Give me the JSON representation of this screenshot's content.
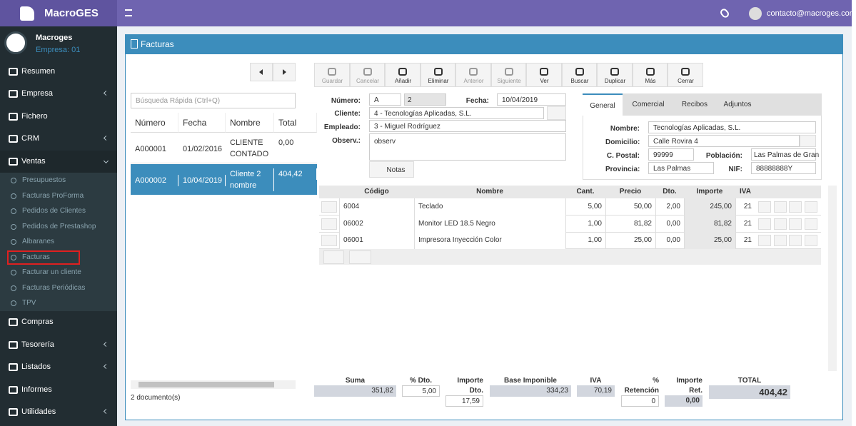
{
  "header": {
    "brand": "MacroGES",
    "user": "contacto@macroges.com"
  },
  "sidebar": {
    "company": "Macroges",
    "company_code": "Empresa: 01",
    "menu_top": [
      "Resumen",
      "Empresa",
      "Fichero",
      "CRM",
      "Ventas"
    ],
    "submenu": [
      "Presupuestos",
      "Facturas ProForma",
      "Pedidos de Clientes",
      "Pedidos de Prestashop",
      "Albaranes",
      "Facturas",
      "Facturar un cliente",
      "Facturas Periódicas",
      "TPV"
    ],
    "menu_bottom": [
      "Compras",
      "Tesorería",
      "Listados",
      "Informes",
      "Utilidades"
    ]
  },
  "panel": {
    "title": "Facturas"
  },
  "list": {
    "search_placeholder": "Búsqueda Rápida (Ctrl+Q)",
    "columns": [
      "Número",
      "Fecha",
      "Nombre",
      "Total"
    ],
    "rows": [
      [
        "A000001",
        "01/02/2016",
        "CLIENTE CONTADO",
        "0,00"
      ],
      [
        "A000002",
        "10/04/2019",
        "Cliente 2 nombre",
        "404,42"
      ]
    ],
    "count": "2 documento(s)"
  },
  "toolbar": [
    "Guardar",
    "Cancelar",
    "Añadir",
    "Eliminar",
    "Anterior",
    "Siguiente",
    "Ver",
    "Buscar",
    "Duplicar",
    "Más",
    "Cerrar"
  ],
  "form": {
    "labels": {
      "numero": "Número:",
      "fecha": "Fecha:",
      "cliente": "Cliente:",
      "empleado": "Empleado:",
      "observ": "Observ.:"
    },
    "serie": "A",
    "numero": "2",
    "fecha": "10/04/2019",
    "cliente": "4 - Tecnologías Aplicadas, S.L.",
    "empleado": "3 - Miguel Rodríguez",
    "observ": "observ",
    "notas": "Notas"
  },
  "tabs": [
    "General",
    "Comercial",
    "Recibos",
    "Adjuntos"
  ],
  "general": {
    "labels": {
      "nombre": "Nombre:",
      "domicilio": "Domicilio:",
      "cpostal": "C. Postal:",
      "poblacion": "Población:",
      "provincia": "Provincia:",
      "nif": "NIF:"
    },
    "nombre": "Tecnologías Aplicadas, S.L.",
    "domicilio": "Calle Rovira 4",
    "cpostal": "99999",
    "poblacion": "Las Palmas de Gran",
    "provincia": "Las Palmas",
    "nif": "88888888Y"
  },
  "lines": {
    "columns": [
      "Código",
      "Nombre",
      "Cant.",
      "Precio",
      "Dto.",
      "Importe",
      "IVA"
    ],
    "rows": [
      [
        "6004",
        "Teclado",
        "5,00",
        "50,00",
        "2,00",
        "245,00",
        "21"
      ],
      [
        "06002",
        "Monitor LED 18.5 Negro",
        "1,00",
        "81,82",
        "0,00",
        "81,82",
        "21"
      ],
      [
        "06001",
        "Impresora Inyección Color",
        "1,00",
        "25,00",
        "0,00",
        "25,00",
        "21"
      ]
    ]
  },
  "totals": {
    "labels": [
      "Suma",
      "% Dto.",
      "Importe Dto.",
      "Base Imponible",
      "IVA",
      "% Retención",
      "Importe Ret.",
      "TOTAL"
    ],
    "values": [
      "351,82",
      "5,00",
      "17,59",
      "334,23",
      "70,19",
      "0",
      "0,00",
      "404,42"
    ]
  }
}
